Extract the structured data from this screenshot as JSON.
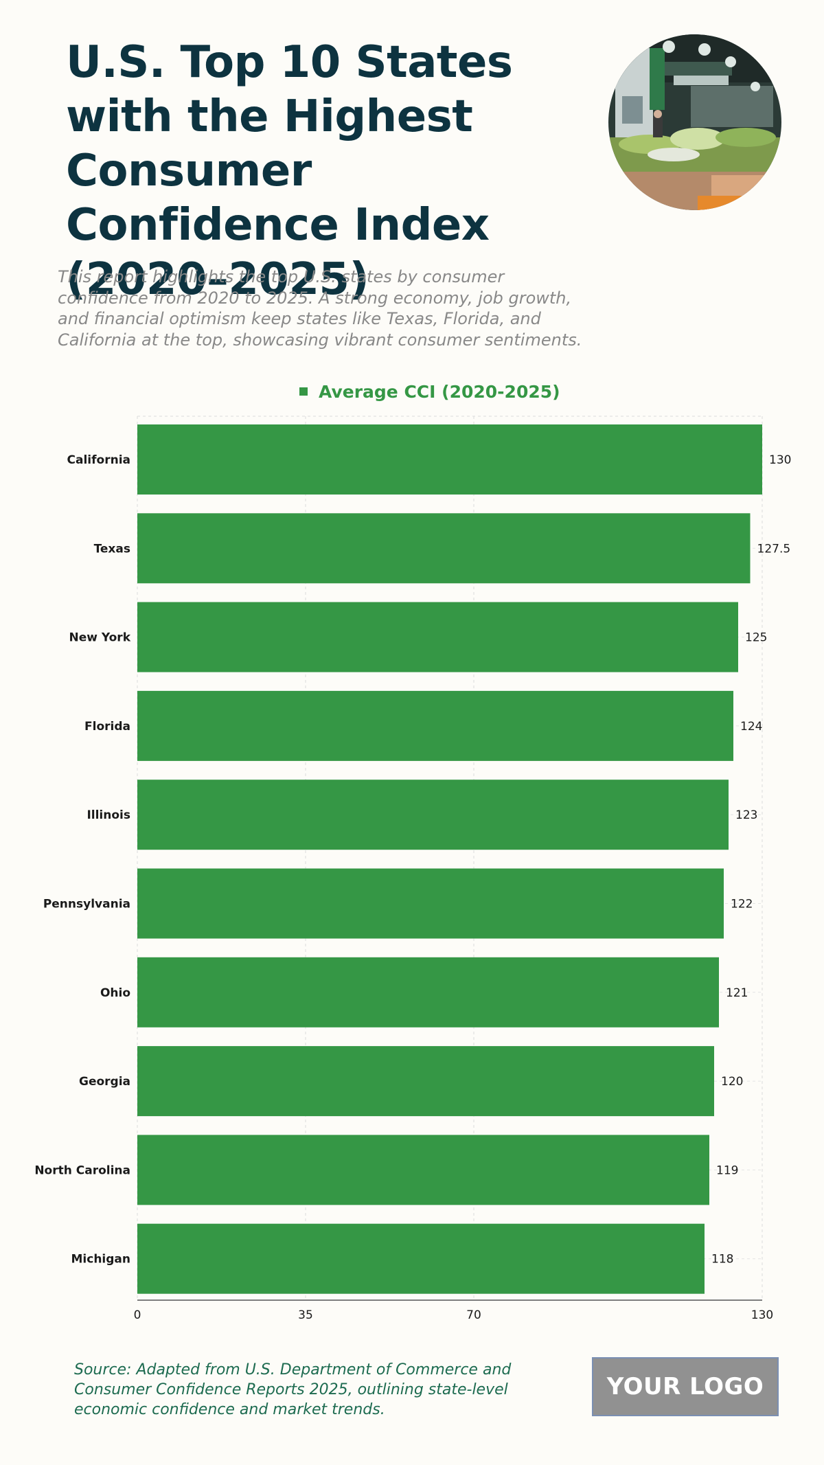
{
  "header": {
    "title": "U.S. Top 10 States with the Highest Consumer Confidence Index (2020–2025)",
    "subtitle": "This report highlights the top U.S. states by consumer confidence from 2020 to 2025. A strong economy, job growth, and financial optimism keep states like Texas, Florida, and California at the top, showcasing vibrant consumer sentiments."
  },
  "chart_data": {
    "type": "bar",
    "orientation": "horizontal",
    "title": "U.S. Top 10 States with the Highest Consumer Confidence Index (2020–2025)",
    "categories": [
      "California",
      "Texas",
      "New York",
      "Florida",
      "Illinois",
      "Pennsylvania",
      "Ohio",
      "Georgia",
      "North Carolina",
      "Michigan"
    ],
    "series": [
      {
        "name": "Average CCI (2020-2025)",
        "values": [
          130,
          127.5,
          125,
          124,
          123,
          122,
          121,
          120,
          119,
          118
        ]
      }
    ],
    "value_labels": [
      "130",
      "127.5",
      "125",
      "124",
      "123",
      "122",
      "121",
      "120",
      "119",
      "118"
    ],
    "xlim": [
      0,
      130
    ],
    "x_ticks": [
      0,
      35,
      70,
      130
    ],
    "x_tick_labels": [
      "0",
      "35",
      "70",
      "130"
    ],
    "grid": true,
    "legend_position": "top-center",
    "color": "#359745"
  },
  "footer": {
    "source": "Source: Adapted from U.S. Department of Commerce and Consumer Confidence Reports 2025, outlining state-level economic confidence and market trends.",
    "logo": "YOUR LOGO"
  }
}
